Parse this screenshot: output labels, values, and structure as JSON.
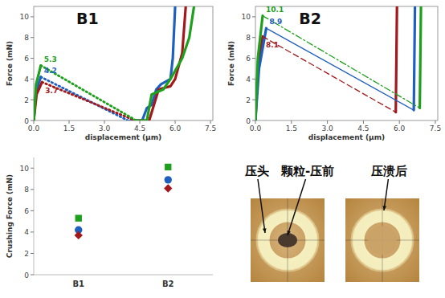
{
  "chart_data": [
    {
      "type": "line",
      "title": "B1",
      "x_label": "displacement (µm)",
      "y_label": "Force (mN)",
      "xlim": [
        0,
        7.6
      ],
      "ylim": [
        0,
        11
      ],
      "xticks": [
        {
          "value": 0,
          "label": "0.0"
        },
        {
          "value": 1.5,
          "label": "1.5"
        },
        {
          "value": 3,
          "label": "3.0"
        },
        {
          "value": 4.5,
          "label": "4.5"
        },
        {
          "value": 6,
          "label": "6.0"
        },
        {
          "value": 7.5,
          "label": "7.5"
        }
      ],
      "yticks": [
        0,
        2,
        4,
        6,
        8,
        10
      ],
      "grid": false,
      "series": [
        {
          "color": "#1f5fbf",
          "line_style": "solid",
          "x": [
            0,
            0.1,
            0.3,
            null,
            4.1,
            4.6,
            4.8,
            5.0,
            5.2,
            5.4,
            5.8,
            5.9,
            6.0
          ],
          "values": [
            0,
            2.8,
            4.2,
            null,
            0,
            0,
            1.2,
            1.5,
            3,
            3.5,
            4,
            6,
            11
          ]
        },
        {
          "color": "#a3191b",
          "line_style": "solid",
          "x": [
            0,
            0.12,
            0.35,
            null,
            4.3,
            4.9,
            5.3,
            5.8,
            6.0,
            6.3,
            6.45
          ],
          "values": [
            0,
            2.5,
            3.7,
            null,
            0,
            0,
            3,
            3.3,
            4,
            6.5,
            11
          ]
        },
        {
          "color": "#1ea01e",
          "line_style": "solid",
          "x": [
            0,
            0.1,
            0.3,
            null,
            4.35,
            4.8,
            5.0,
            5.5,
            5.8,
            6.3,
            6.6,
            6.8
          ],
          "values": [
            0,
            3.5,
            5.3,
            null,
            0,
            0,
            2.5,
            3,
            4,
            6,
            8,
            11
          ]
        },
        {
          "color": "#1f5fbf",
          "line_style": "dotted",
          "x": [
            0.3,
            4.0
          ],
          "values": [
            4.2,
            0
          ]
        },
        {
          "color": "#a3191b",
          "line_style": "dotted",
          "x": [
            0.35,
            4.3
          ],
          "values": [
            3.7,
            0
          ]
        },
        {
          "color": "#1ea01e",
          "line_style": "dotted",
          "x": [
            0.3,
            4.35
          ],
          "values": [
            5.3,
            0
          ]
        }
      ],
      "annotations": [
        {
          "text": "5.3",
          "x": 0.3,
          "y": 5.3,
          "color": "#1ea01e"
        },
        {
          "text": "4.2",
          "x": 0.3,
          "y": 4.2,
          "color": "#1f5fbf"
        },
        {
          "text": "3.7",
          "x": 0.35,
          "y": 3.7,
          "color": "#a3191b"
        }
      ]
    },
    {
      "type": "line",
      "title": "B2",
      "x_label": "displacement (µm)",
      "y_label": "Force (mN)",
      "xlim": [
        0,
        7.6
      ],
      "ylim": [
        0,
        11
      ],
      "xticks": [
        {
          "value": 0,
          "label": "0.0"
        },
        {
          "value": 1.5,
          "label": "1.5"
        },
        {
          "value": 3,
          "label": "3.0"
        },
        {
          "value": 4.5,
          "label": "4.5"
        },
        {
          "value": 6,
          "label": "6.0"
        },
        {
          "value": 7.5,
          "label": "7.5"
        }
      ],
      "yticks": [
        0,
        2,
        4,
        6,
        8,
        10
      ],
      "grid": false,
      "series": [
        {
          "color": "#a3191b",
          "line_style": "solid",
          "x": [
            0,
            0.1,
            0.3,
            null,
            5.85,
            5.9
          ],
          "values": [
            0,
            5,
            8.1,
            null,
            0.8,
            11
          ]
        },
        {
          "color": "#1f5fbf",
          "line_style": "solid",
          "x": [
            0,
            0.15,
            0.45,
            null,
            6.6,
            6.65
          ],
          "values": [
            0,
            5,
            8.9,
            null,
            1.0,
            11
          ]
        },
        {
          "color": "#1ea01e",
          "line_style": "solid",
          "x": [
            0,
            0.1,
            0.3,
            null,
            6.85,
            6.9
          ],
          "values": [
            0,
            6,
            10.1,
            null,
            1.2,
            11
          ]
        },
        {
          "color": "#a3191b",
          "line_style": "dashed",
          "x": [
            0.3,
            5.85
          ],
          "values": [
            8.1,
            0.8
          ]
        },
        {
          "color": "#1f5fbf",
          "line_style": "thin",
          "x": [
            0.45,
            6.6
          ],
          "values": [
            8.9,
            1.0
          ]
        },
        {
          "color": "#1ea01e",
          "line_style": "dashdot",
          "x": [
            0.3,
            6.85
          ],
          "values": [
            10.1,
            1.2
          ]
        }
      ],
      "annotations": [
        {
          "text": "10.1",
          "x": 0.3,
          "y": 10.1,
          "color": "#1ea01e"
        },
        {
          "text": "8.9",
          "x": 0.45,
          "y": 8.9,
          "color": "#1f5fbf"
        },
        {
          "text": "8.1",
          "x": 0.3,
          "y": 8.1,
          "color": "#a3191b"
        }
      ]
    },
    {
      "type": "scatter",
      "y_label": "Crushing Force (mN)",
      "categories": [
        "B1",
        "B2"
      ],
      "ylim": [
        0,
        11
      ],
      "yticks": [
        0,
        2,
        4,
        6,
        8,
        10
      ],
      "grid": false,
      "series": [
        {
          "color": "#1ea01e",
          "marker": "square",
          "values": [
            5.3,
            10.1
          ]
        },
        {
          "color": "#1f5fbf",
          "marker": "circle",
          "values": [
            4.2,
            8.9
          ]
        },
        {
          "color": "#a3191b",
          "marker": "diamond",
          "values": [
            3.7,
            8.1
          ]
        }
      ]
    }
  ],
  "photo_panel": {
    "labels": [
      "压头",
      "颗粒-压前",
      "压溃后"
    ]
  }
}
